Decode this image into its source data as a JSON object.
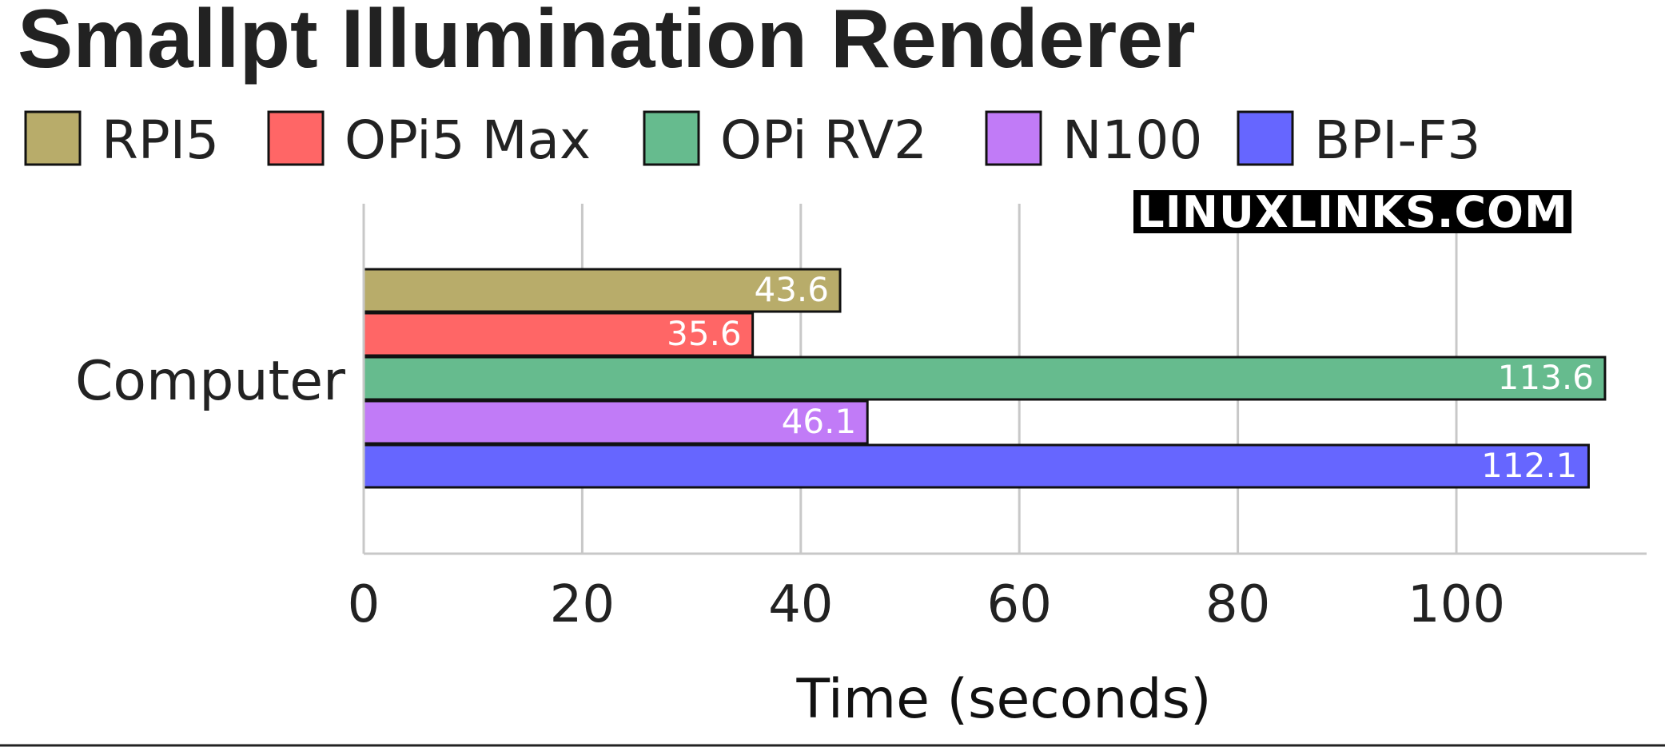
{
  "chart_data": {
    "type": "bar",
    "orientation": "horizontal",
    "title": "Smallpt Illumination Renderer",
    "xlabel": "Time (seconds)",
    "ylabel": "",
    "categories": [
      "Computer"
    ],
    "xlim": [
      0,
      117
    ],
    "xticks": [
      0,
      20,
      40,
      60,
      80,
      100
    ],
    "grid": "vertical",
    "legend_position": "top",
    "series": [
      {
        "name": "RPI5",
        "values": [
          43.6
        ],
        "label": "43.6",
        "color": "#b8ac6a"
      },
      {
        "name": "OPi5 Max",
        "values": [
          35.6
        ],
        "label": "35.6",
        "color": "#ff6666"
      },
      {
        "name": "OPi RV2",
        "values": [
          113.6
        ],
        "label": "113.6",
        "color": "#66bb8e"
      },
      {
        "name": "N100",
        "values": [
          46.1
        ],
        "label": "46.1",
        "color": "#c17bf7"
      },
      {
        "name": "BPI-F3",
        "values": [
          112.1
        ],
        "label": "112.1",
        "color": "#6666ff"
      }
    ]
  },
  "watermark": "LINUXLINKS.COM"
}
